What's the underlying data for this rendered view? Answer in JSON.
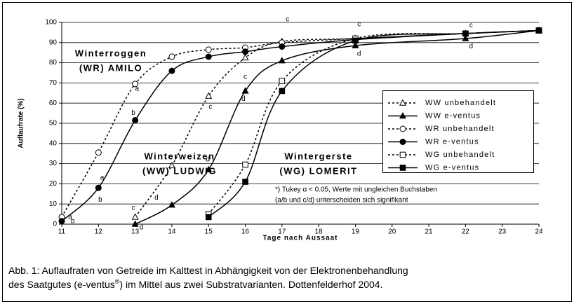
{
  "chart_data": {
    "type": "line",
    "ylabel": "Auflaufrate (%)",
    "xlabel": "Tage nach Aussaat",
    "x": [
      11,
      12,
      13,
      14,
      15,
      16,
      17,
      19,
      22,
      24
    ],
    "xlim": [
      11,
      24
    ],
    "xticks": [
      11,
      12,
      13,
      14,
      15,
      16,
      17,
      18,
      19,
      20,
      21,
      22,
      23,
      24
    ],
    "ylim": [
      0,
      100
    ],
    "yticks": [
      0,
      10,
      20,
      30,
      40,
      50,
      60,
      70,
      80,
      90,
      100
    ],
    "grid": true,
    "series": [
      {
        "name": "WW unbehandelt",
        "color": "#000000",
        "style": "dashed",
        "marker": "triangle-open",
        "values": [
          null,
          null,
          3.5,
          29,
          63.5,
          82.5,
          90.5,
          92,
          94.5,
          96
        ]
      },
      {
        "name": "WW e-ventus",
        "color": "#000000",
        "style": "solid",
        "marker": "triangle",
        "values": [
          null,
          null,
          0,
          9.5,
          27,
          66,
          81,
          88.5,
          92,
          96
        ]
      },
      {
        "name": "WR unbehandelt",
        "color": "#000000",
        "style": "dashed",
        "marker": "circle-open",
        "values": [
          3.5,
          35.5,
          69.5,
          83,
          86.5,
          87.5,
          90,
          92,
          94.5,
          96
        ]
      },
      {
        "name": "WR e-ventus",
        "color": "#000000",
        "style": "solid",
        "marker": "circle",
        "values": [
          1.5,
          18,
          51.5,
          76,
          83,
          85.5,
          88,
          91.5,
          94.5,
          96
        ]
      },
      {
        "name": "WG unbehandelt",
        "color": "#000000",
        "style": "dashed",
        "marker": "square-open",
        "values": [
          null,
          null,
          null,
          null,
          5,
          29.5,
          71,
          92,
          94.5,
          96
        ]
      },
      {
        "name": "WG e-ventus",
        "color": "#000000",
        "style": "solid",
        "marker": "square",
        "values": [
          null,
          null,
          null,
          null,
          3.5,
          21,
          66,
          91,
          94.5,
          96
        ]
      }
    ],
    "annotations": [
      {
        "text": "a",
        "x": 11.23,
        "y": 3.5
      },
      {
        "text": "b",
        "x": 11.3,
        "y": 1.4
      },
      {
        "text": "a",
        "x": 12.1,
        "y": 23
      },
      {
        "text": "b",
        "x": 12.05,
        "y": 12
      },
      {
        "text": "a",
        "x": 13.05,
        "y": 67
      },
      {
        "text": "b",
        "x": 12.95,
        "y": 55
      },
      {
        "text": "c",
        "x": 12.95,
        "y": 8
      },
      {
        "text": "d",
        "x": 13.17,
        "y": -1.7
      },
      {
        "text": "c",
        "x": 13.75,
        "y": 27
      },
      {
        "text": "d",
        "x": 13.58,
        "y": 13
      },
      {
        "text": "c",
        "x": 15.05,
        "y": 58
      },
      {
        "text": "d",
        "x": 14.98,
        "y": 32
      },
      {
        "text": "c",
        "x": 16.0,
        "y": 73
      },
      {
        "text": "d",
        "x": 15.95,
        "y": 62
      },
      {
        "text": "c",
        "x": 17.15,
        "y": 101.5
      },
      {
        "text": "c",
        "x": 19.1,
        "y": 99
      },
      {
        "text": "d",
        "x": 19.1,
        "y": 84.5
      },
      {
        "text": "c",
        "x": 22.15,
        "y": 98.5
      },
      {
        "text": "d",
        "x": 22.15,
        "y": 88
      }
    ],
    "group_labels": [
      "Winterroggen",
      "(WR) AMILO",
      "Winterweizen",
      "(WW) LUDWIG",
      "Wintergerste",
      "(WG) LOMERIT"
    ],
    "footnote": [
      "*) Tukey α < 0.05, Werte mit ungleichen Buchstaben",
      "(a/b und c/d)  unterscheiden sich signifikant"
    ]
  },
  "caption": [
    "Abb. 1: Auflaufraten von Getreide im Kalttest in Abhängigkeit von der Elektronenbehandlung",
    "des Saatgutes (e-ventus",
    "®",
    ") im Mittel aus zwei Substratvarianten. Dottenfelderhof 2004."
  ]
}
